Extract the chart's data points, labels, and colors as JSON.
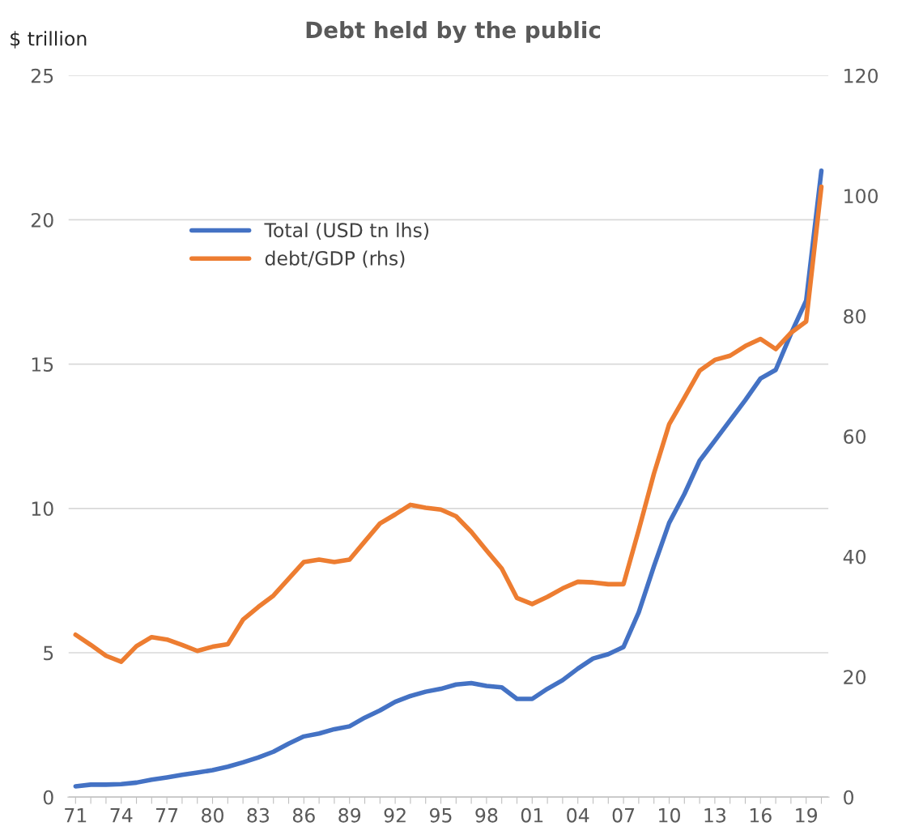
{
  "chart_data": {
    "type": "line",
    "title": "Debt held by the public",
    "ylabel": "$ trillion",
    "categories": [
      "71",
      null,
      null,
      "74",
      null,
      null,
      "77",
      null,
      null,
      "80",
      null,
      null,
      "83",
      null,
      null,
      "86",
      null,
      null,
      "89",
      null,
      null,
      "92",
      null,
      null,
      "95",
      null,
      null,
      "98",
      null,
      null,
      "01",
      null,
      null,
      "04",
      null,
      null,
      "07",
      null,
      null,
      "10",
      null,
      null,
      "13",
      null,
      null,
      "16",
      null,
      null,
      "19",
      null
    ],
    "series": [
      {
        "name": "Total (USD tn lhs)",
        "color": "#4472c4",
        "values": [
          0.37,
          0.43,
          0.43,
          0.45,
          0.5,
          0.6,
          0.68,
          0.77,
          0.85,
          0.93,
          1.05,
          1.2,
          1.37,
          1.57,
          1.85,
          2.1,
          2.2,
          2.35,
          2.45,
          2.75,
          3.0,
          3.3,
          3.5,
          3.65,
          3.75,
          3.9,
          3.95,
          3.85,
          3.8,
          3.4,
          3.4,
          3.75,
          4.05,
          4.45,
          4.8,
          4.95,
          5.2,
          6.4,
          8.0,
          9.5,
          10.5,
          11.65,
          12.35,
          13.05,
          13.75,
          14.5,
          14.8,
          16.05,
          17.2,
          21.7
        ]
      },
      {
        "name": "debt/GDP (rhs)",
        "color": "#ed7d31",
        "axis": "y2",
        "values": [
          27.0,
          25.3,
          23.5,
          22.5,
          25.1,
          26.6,
          26.2,
          25.3,
          24.3,
          25.0,
          25.4,
          29.5,
          31.6,
          33.5,
          36.3,
          39.1,
          39.5,
          39.1,
          39.5,
          42.5,
          45.5,
          47.0,
          48.6,
          48.1,
          47.8,
          46.7,
          44.1,
          41.0,
          38.0,
          33.1,
          32.1,
          33.3,
          34.7,
          35.8,
          35.7,
          35.4,
          35.4,
          44.4,
          53.8,
          62.0,
          66.4,
          70.9,
          72.7,
          73.4,
          75.0,
          76.2,
          74.5,
          77.2,
          79.1,
          101.5
        ]
      }
    ],
    "ylim": [
      0,
      25
    ],
    "yticks": [
      0,
      5,
      10,
      15,
      20,
      25
    ],
    "y2lim": [
      0,
      120
    ],
    "y2ticks": [
      0,
      20,
      40,
      60,
      80,
      100,
      120
    ],
    "grid": "y",
    "legend": "top left",
    "line_style": "solid",
    "marker": "none"
  }
}
